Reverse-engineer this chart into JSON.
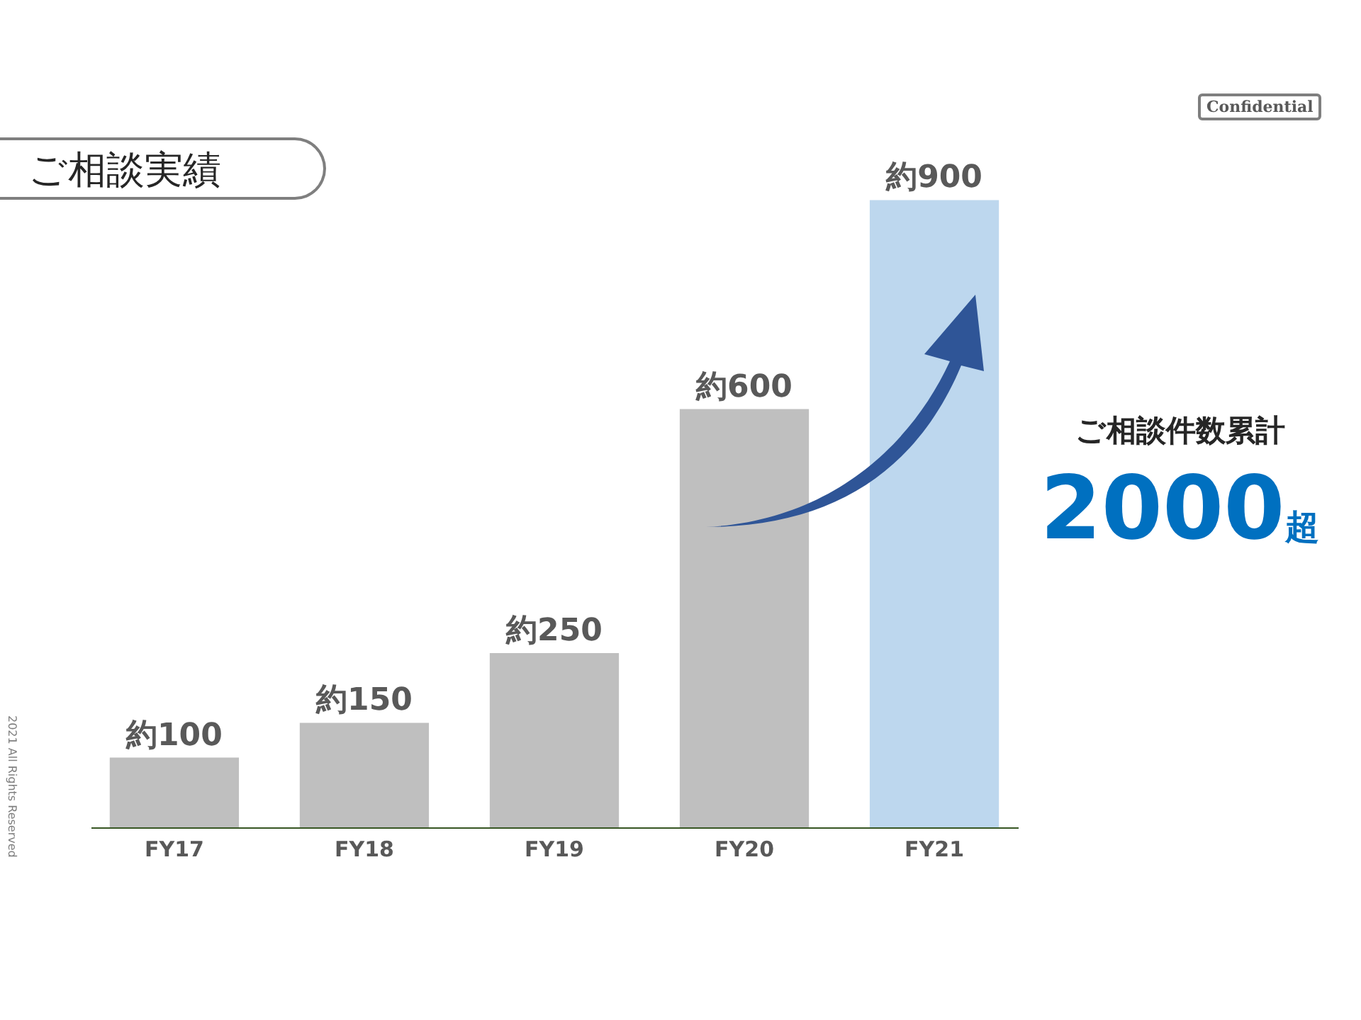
{
  "chart_data": {
    "type": "bar",
    "title": "ご相談実績",
    "categories": [
      "FY17",
      "FY18",
      "FY19",
      "FY20",
      "FY21"
    ],
    "values": [
      100,
      150,
      250,
      600,
      900
    ],
    "value_labels": [
      "約100",
      "約150",
      "約250",
      "約600",
      "約900"
    ],
    "colors": [
      "#bfbfbf",
      "#bfbfbf",
      "#bfbfbf",
      "#bfbfbf",
      "#bdd7ee"
    ],
    "annotations": [
      "ご相談件数累計",
      "2000超",
      "Confidential",
      "2021 All Rights Reserved"
    ],
    "grid": false
  }
}
